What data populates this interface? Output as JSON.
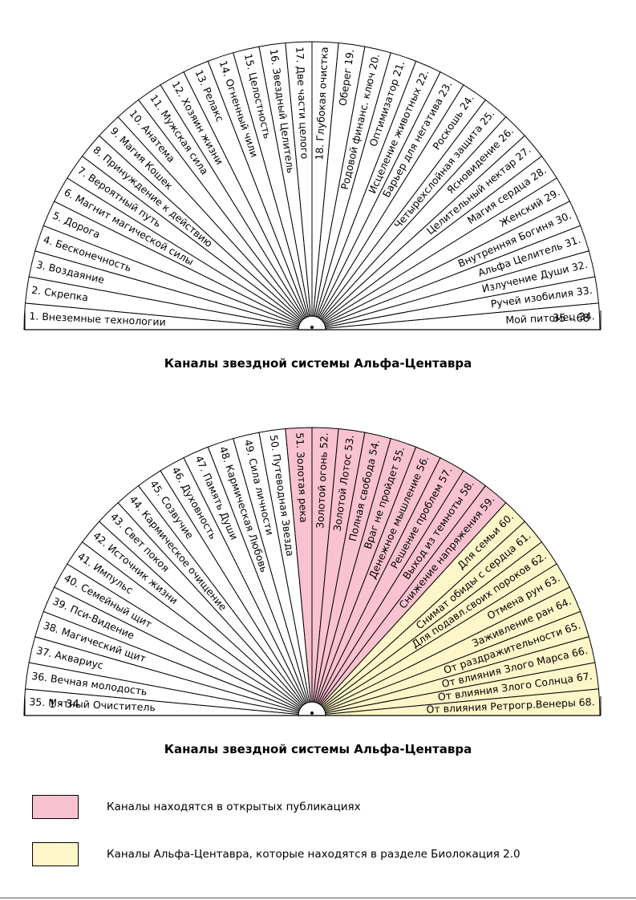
{
  "colors": {
    "pink": "#f9c2d1",
    "yellow": "#fdf6c8",
    "white": "#ffffff",
    "line": "#000000"
  },
  "charts": [
    {
      "title": "Каналы звездной системы Альфа-Центавра",
      "left_corner": "",
      "right_corner": "35 - 68",
      "sectors": [
        {
          "label": "1. Внеземные технологии",
          "fill": "white"
        },
        {
          "label": "2. Скрепка",
          "fill": "white"
        },
        {
          "label": "3. Воздаяние",
          "fill": "white"
        },
        {
          "label": "4. Бесконечность",
          "fill": "white"
        },
        {
          "label": "5. Дорога",
          "fill": "white"
        },
        {
          "label": "6. Магнит магической силы",
          "fill": "white"
        },
        {
          "label": "7. Вероятный путь",
          "fill": "white"
        },
        {
          "label": "8. Принуждение к действию",
          "fill": "white"
        },
        {
          "label": "9. Магия Кошек",
          "fill": "white"
        },
        {
          "label": "10. Анатема",
          "fill": "white"
        },
        {
          "label": "11. Мужская сила",
          "fill": "white"
        },
        {
          "label": "12. Хозяин жизни",
          "fill": "white"
        },
        {
          "label": "13. Релакс",
          "fill": "white"
        },
        {
          "label": "14. Огненный чили",
          "fill": "white"
        },
        {
          "label": "15. Целостность",
          "fill": "white"
        },
        {
          "label": "16. Звездный Целитель",
          "fill": "white"
        },
        {
          "label": "17. Две части целого",
          "fill": "white"
        },
        {
          "label": "18. Глубокая очистка",
          "fill": "white"
        },
        {
          "label": "Оберег 19.",
          "fill": "white"
        },
        {
          "label": "Родовой финанс. ключ 20.",
          "fill": "white"
        },
        {
          "label": "Оптимизатор 21.",
          "fill": "white"
        },
        {
          "label": "Исцеление животных 22.",
          "fill": "white"
        },
        {
          "label": "Барьер для негатива 23.",
          "fill": "white"
        },
        {
          "label": "Роскошь 24.",
          "fill": "white"
        },
        {
          "label": "Четырехслойная защита 25.",
          "fill": "white"
        },
        {
          "label": "Ясновидение 26.",
          "fill": "white"
        },
        {
          "label": "Целительный нектар 27.",
          "fill": "white"
        },
        {
          "label": "Магия сердца 28.",
          "fill": "white"
        },
        {
          "label": "Женский 29.",
          "fill": "white"
        },
        {
          "label": "Внутренняя Богиня 30.",
          "fill": "white"
        },
        {
          "label": "Альфа Целитель 31.",
          "fill": "white"
        },
        {
          "label": "Излучение Души 32.",
          "fill": "white"
        },
        {
          "label": "Ручей изобилия 33.",
          "fill": "white"
        },
        {
          "label": "Мой питомец 34.",
          "fill": "white"
        }
      ]
    },
    {
      "title": "Каналы звездной системы Альфа-Центавра",
      "left_corner": "1 - 34",
      "right_corner": "",
      "sectors": [
        {
          "label": "35. Мятный Очиститель",
          "fill": "white"
        },
        {
          "label": "36. Вечная молодость",
          "fill": "white"
        },
        {
          "label": "37. Аквариус",
          "fill": "white"
        },
        {
          "label": "38. Магический щит",
          "fill": "white"
        },
        {
          "label": "39. Пси-Видение",
          "fill": "white"
        },
        {
          "label": "40. Семейный щит",
          "fill": "white"
        },
        {
          "label": "41. Импульс",
          "fill": "white"
        },
        {
          "label": "42. Источник жизни",
          "fill": "white"
        },
        {
          "label": "43. Свет покоя",
          "fill": "white"
        },
        {
          "label": "44. Кармическое очищение",
          "fill": "white"
        },
        {
          "label": "45. Созвучие",
          "fill": "white"
        },
        {
          "label": "46. Духовность",
          "fill": "white"
        },
        {
          "label": "47. Память Души",
          "fill": "white"
        },
        {
          "label": "48. Кармическая Любовь",
          "fill": "white"
        },
        {
          "label": "49. Сила личности",
          "fill": "white"
        },
        {
          "label": "50. Путеводная Звезда",
          "fill": "white"
        },
        {
          "label": "51. Золотая река",
          "fill": "pink"
        },
        {
          "label": "Золотой огонь 52.",
          "fill": "pink"
        },
        {
          "label": "Золотой Лотос 53.",
          "fill": "pink"
        },
        {
          "label": "Полная свобода 54.",
          "fill": "pink"
        },
        {
          "label": "Враг не пройдет 55.",
          "fill": "pink"
        },
        {
          "label": "Денежное мышление 56.",
          "fill": "pink"
        },
        {
          "label": "Решение проблем 57.",
          "fill": "pink"
        },
        {
          "label": "Выход из темноты 58.",
          "fill": "pink"
        },
        {
          "label": "Снижение напряжения 59.",
          "fill": "pink"
        },
        {
          "label": "Для семьи 60.",
          "fill": "yellow"
        },
        {
          "label": "Снимат обиды с сердца 61.",
          "fill": "yellow"
        },
        {
          "label": "Для подавл.своих пороков 62.",
          "fill": "yellow"
        },
        {
          "label": "Отмена рун 63.",
          "fill": "yellow"
        },
        {
          "label": "Заживление ран 64.",
          "fill": "yellow"
        },
        {
          "label": "От раздражительности 65.",
          "fill": "yellow"
        },
        {
          "label": "От влияния Злого Марса 66.",
          "fill": "yellow"
        },
        {
          "label": "От влияния Злого Солнца 67.",
          "fill": "yellow"
        },
        {
          "label": "От влияния Ретрогр.Венеры 68.",
          "fill": "yellow"
        }
      ]
    }
  ],
  "legend": [
    {
      "color": "pink",
      "label": "Каналы находятся в открытых публикациях"
    },
    {
      "color": "yellow",
      "label": "Каналы Альфа-Центавра, которые находятся в разделе Биолокация 2.0"
    }
  ]
}
